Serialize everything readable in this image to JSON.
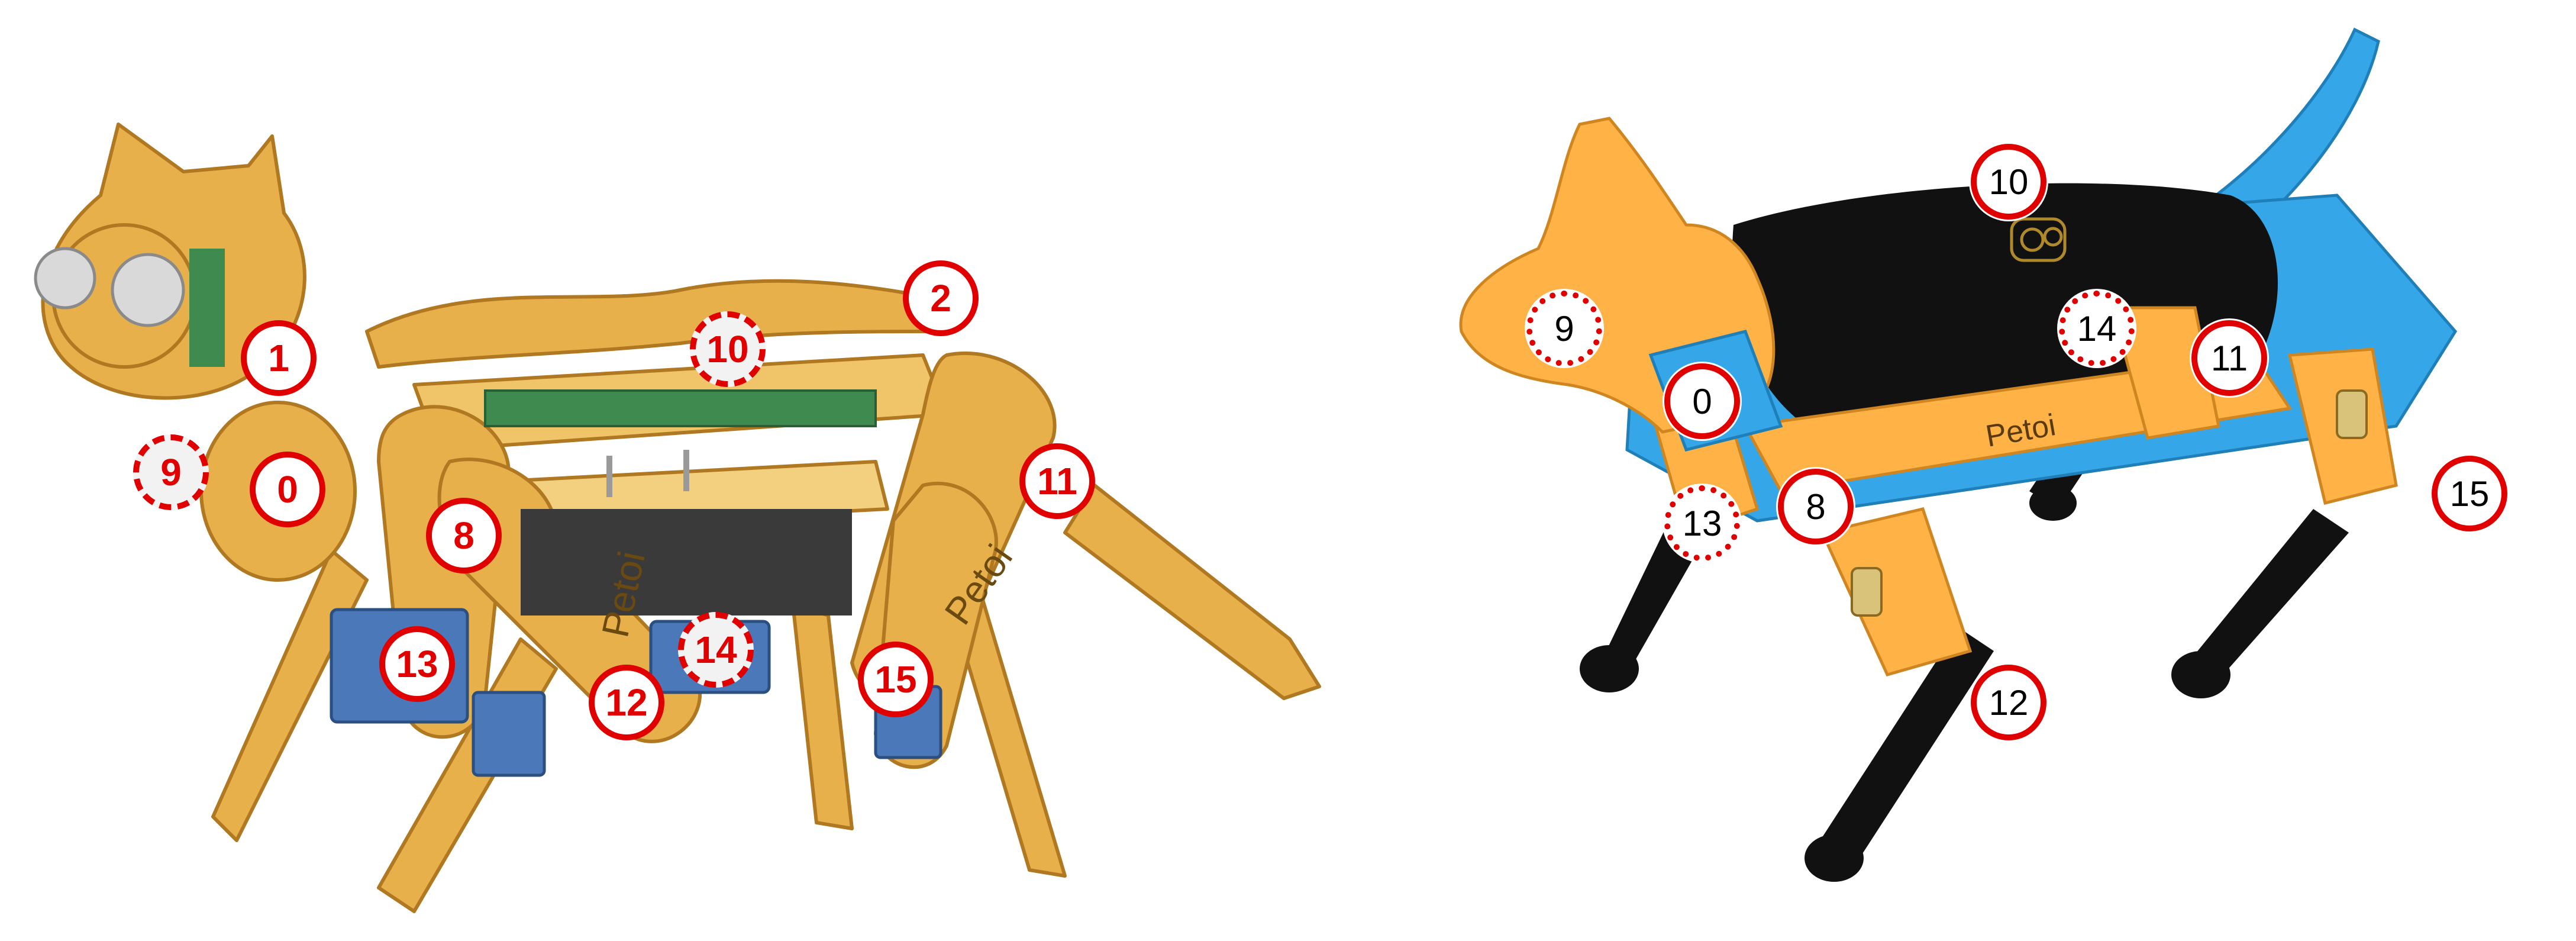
{
  "colors": {
    "frame_wood": "#e8b04a",
    "frame_edge": "#b07820",
    "servo": "#4a78b8",
    "circuit": "#3f8a4f",
    "battery": "#3a3a3a",
    "marker_red": "#e00000",
    "bittle_body": "#ffb347",
    "bittle_blue": "#35a7e8",
    "bittle_black": "#111111"
  },
  "nybble": {
    "brand_text": "Petoi",
    "markers": [
      {
        "id": "1",
        "style": "solid"
      },
      {
        "id": "2",
        "style": "solid"
      },
      {
        "id": "10",
        "style": "dashed"
      },
      {
        "id": "9",
        "style": "dashed"
      },
      {
        "id": "0",
        "style": "solid"
      },
      {
        "id": "11",
        "style": "solid"
      },
      {
        "id": "8",
        "style": "solid"
      },
      {
        "id": "13",
        "style": "solid"
      },
      {
        "id": "14",
        "style": "dashed"
      },
      {
        "id": "15",
        "style": "solid"
      },
      {
        "id": "12",
        "style": "solid"
      }
    ]
  },
  "bittle": {
    "brand_text": "Petoi",
    "markers": [
      {
        "id": "10",
        "style": "solid"
      },
      {
        "id": "9",
        "style": "dotted"
      },
      {
        "id": "14",
        "style": "dotted"
      },
      {
        "id": "11",
        "style": "solid"
      },
      {
        "id": "0",
        "style": "solid"
      },
      {
        "id": "8",
        "style": "solid"
      },
      {
        "id": "13",
        "style": "dotted"
      },
      {
        "id": "15",
        "style": "solid"
      },
      {
        "id": "12",
        "style": "solid"
      }
    ]
  }
}
